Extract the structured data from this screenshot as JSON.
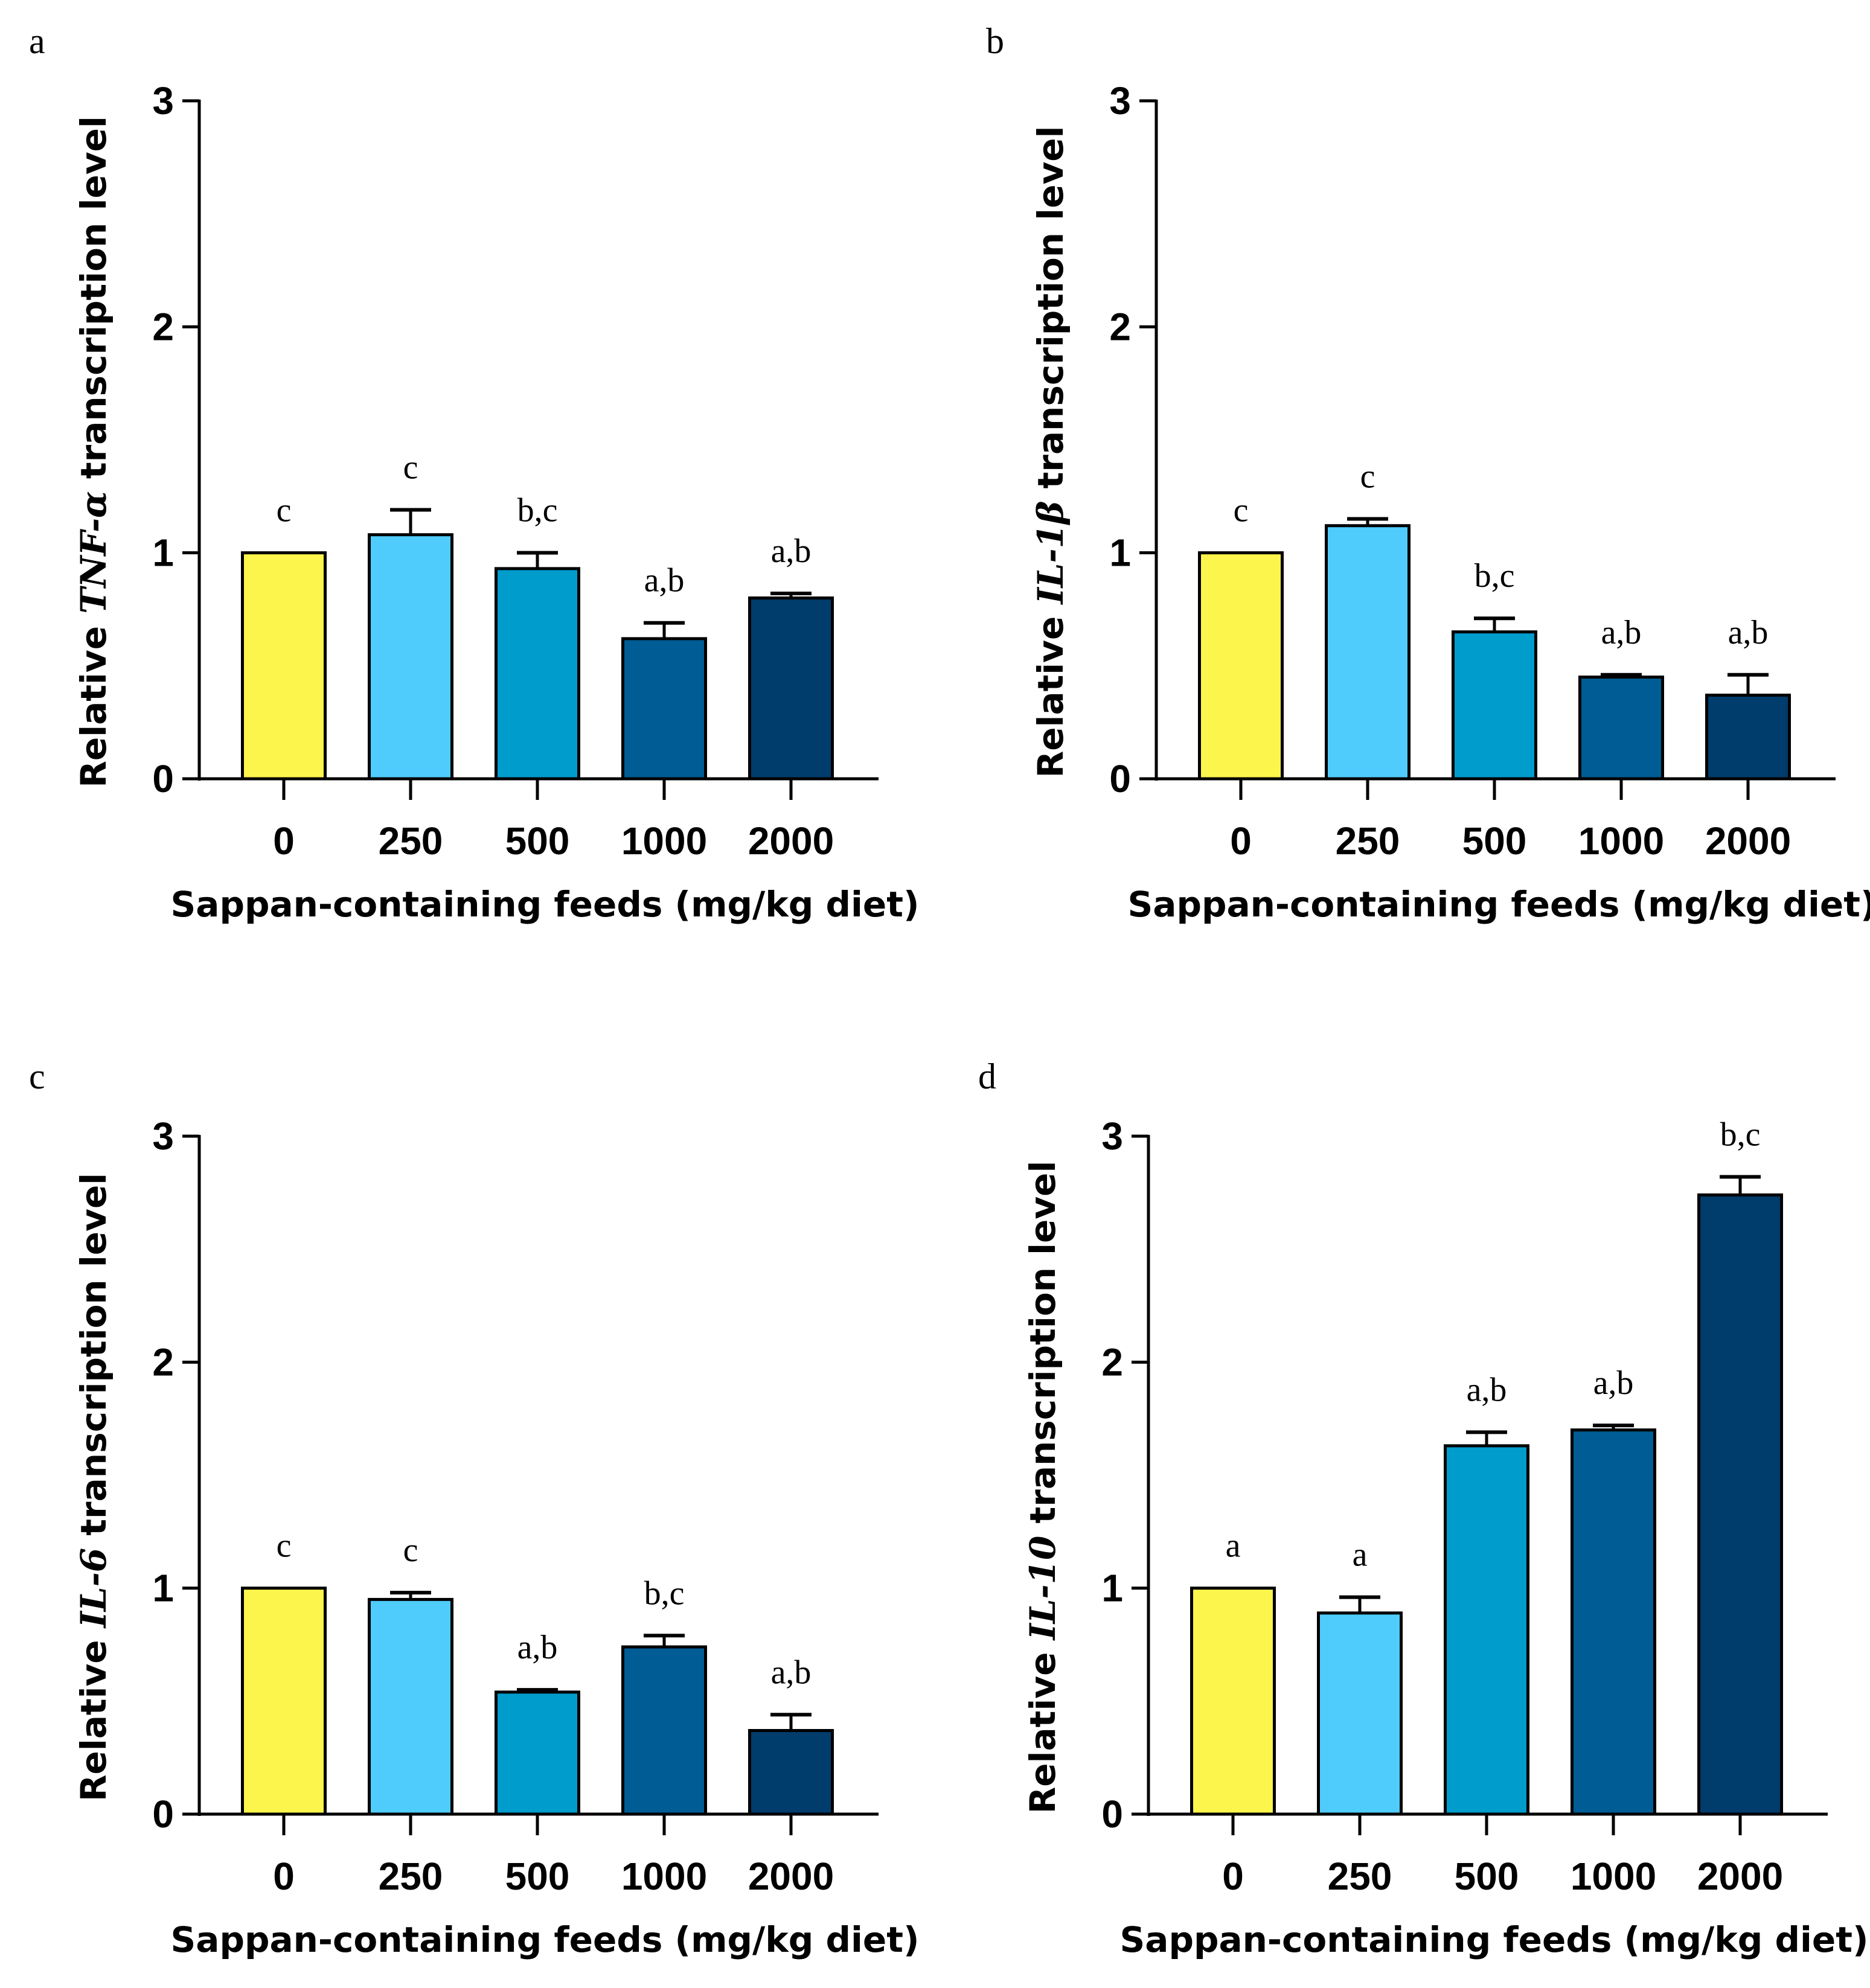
{
  "figure": {
    "x_label": "Sappan-containing feeds (mg/kg diet)"
  },
  "chart_data": [
    {
      "type": "bar",
      "panel": "a",
      "ylabel": {
        "prefix": "Relative ",
        "gene": "TNF-α",
        "suffix": " transcription level"
      },
      "xlabel": "Sappan-containing feeds (mg/kg diet)",
      "categories": [
        "0",
        "250",
        "500",
        "1000",
        "2000"
      ],
      "values": [
        1.0,
        1.08,
        0.93,
        0.62,
        0.8
      ],
      "errors": [
        0.0,
        0.11,
        0.07,
        0.07,
        0.02
      ],
      "significance": [
        "c",
        "c",
        "b,c",
        "a,b",
        "a,b"
      ],
      "ylim": [
        0,
        3
      ],
      "yticks": [
        "0",
        "1",
        "2",
        "3"
      ],
      "colors": [
        "#fcf54c",
        "#4fccfc",
        "#009ccc",
        "#005c94",
        "#003c6c"
      ]
    },
    {
      "type": "bar",
      "panel": "b",
      "ylabel": {
        "prefix": "Relative ",
        "gene": "IL-1β",
        "suffix": " transcription level"
      },
      "xlabel": "Sappan-containing feeds (mg/kg diet)",
      "categories": [
        "0",
        "250",
        "500",
        "1000",
        "2000"
      ],
      "values": [
        1.0,
        1.12,
        0.65,
        0.45,
        0.37
      ],
      "errors": [
        0.0,
        0.03,
        0.06,
        0.01,
        0.09
      ],
      "significance": [
        "c",
        "c",
        "b,c",
        "a,b",
        "a,b"
      ],
      "ylim": [
        0,
        3
      ],
      "yticks": [
        "0",
        "1",
        "2",
        "3"
      ],
      "colors": [
        "#fcf54c",
        "#4fccfc",
        "#009ccc",
        "#005c94",
        "#003c6c"
      ]
    },
    {
      "type": "bar",
      "panel": "c",
      "ylabel": {
        "prefix": "Relative ",
        "gene": "IL-6",
        "suffix": " transcription level"
      },
      "xlabel": "Sappan-containing feeds (mg/kg diet)",
      "categories": [
        "0",
        "250",
        "500",
        "1000",
        "2000"
      ],
      "values": [
        1.0,
        0.95,
        0.54,
        0.74,
        0.37
      ],
      "errors": [
        0.0,
        0.03,
        0.01,
        0.05,
        0.07
      ],
      "significance": [
        "c",
        "c",
        "a,b",
        "b,c",
        "a,b"
      ],
      "ylim": [
        0,
        3
      ],
      "yticks": [
        "0",
        "1",
        "2",
        "3"
      ],
      "colors": [
        "#fcf54c",
        "#4fccfc",
        "#009ccc",
        "#005c94",
        "#003c6c"
      ]
    },
    {
      "type": "bar",
      "panel": "d",
      "ylabel": {
        "prefix": "Relative ",
        "gene": "IL-10",
        "suffix": " transcription level"
      },
      "xlabel": "Sappan-containing feeds (mg/kg diet)",
      "categories": [
        "0",
        "250",
        "500",
        "1000",
        "2000"
      ],
      "values": [
        1.0,
        0.89,
        1.63,
        1.7,
        2.74
      ],
      "errors": [
        0.0,
        0.07,
        0.06,
        0.02,
        0.08
      ],
      "significance": [
        "a",
        "a",
        "a,b",
        "a,b",
        "b,c"
      ],
      "ylim": [
        0,
        3
      ],
      "yticks": [
        "0",
        "1",
        "2",
        "3"
      ],
      "colors": [
        "#fcf54c",
        "#4fccfc",
        "#009ccc",
        "#005c94",
        "#003c6c"
      ]
    }
  ]
}
